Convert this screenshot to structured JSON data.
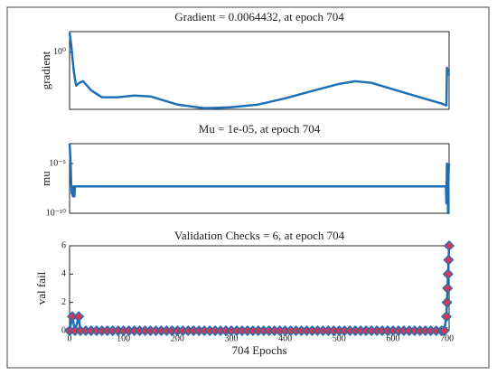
{
  "chart_data": [
    {
      "type": "line",
      "title": "Gradient = 0.0064432, at epoch 704",
      "ylabel": "gradient",
      "ylog": true,
      "xlim": [
        0,
        704
      ],
      "ylim": [
        3e-06,
        100
      ],
      "yticks": [
        {
          "value": 1,
          "label": "10⁰"
        }
      ],
      "color": "#1f6fb7",
      "x": [
        0,
        3,
        8,
        12,
        18,
        25,
        40,
        60,
        90,
        120,
        150,
        200,
        250,
        300,
        350,
        400,
        450,
        500,
        530,
        560,
        600,
        650,
        690,
        699,
        700,
        702,
        704
      ],
      "values": [
        80,
        5,
        0.012,
        0.00059,
        0.0011,
        0.0016,
        0.00021,
        4.4e-05,
        4.4e-05,
        6.5e-05,
        5.3e-05,
        8.7e-06,
        3.9e-06,
        4.8e-06,
        8.7e-06,
        3.5e-05,
        0.00018,
        0.00087,
        0.0016,
        0.0011,
        0.00026,
        4.4e-05,
        1.1e-05,
        7.2e-06,
        0.032,
        0.012,
        0.0064432
      ]
    },
    {
      "type": "line",
      "title": "Mu = 1e-05, at epoch 704",
      "ylabel": "mu",
      "ylog": true,
      "xlim": [
        0,
        704
      ],
      "ylim": [
        1e-10,
        0.001
      ],
      "yticks": [
        {
          "value": 1e-05,
          "label": "10⁻⁵"
        },
        {
          "value": 1e-10,
          "label": "10⁻¹⁰"
        }
      ],
      "color": "#1f6fb7",
      "x": [
        0,
        2,
        3,
        4,
        5,
        6,
        8,
        9,
        10,
        698,
        699,
        700,
        701,
        702,
        703,
        704
      ],
      "values": [
        0.001,
        1e-05,
        1e-07,
        1e-08,
        5e-08,
        5e-09,
        5e-08,
        5e-09,
        5e-08,
        5e-08,
        1e-09,
        1e-05,
        1e-07,
        1e-10,
        1e-06,
        1e-05
      ]
    },
    {
      "type": "line",
      "title": "Validation Checks = 6, at epoch 704",
      "ylabel": "val fail",
      "xlabel": "704 Epochs",
      "ylog": false,
      "xlim": [
        0,
        704
      ],
      "ylim": [
        0,
        6
      ],
      "yticks": [
        0,
        2,
        4,
        6
      ],
      "xticks": [
        0,
        100,
        200,
        300,
        400,
        500,
        600,
        700
      ],
      "color": "#1f6fb7",
      "marker": "diamond",
      "marker_fill": "#e0344a",
      "x": [
        0,
        5,
        10,
        17,
        20,
        30,
        40,
        50,
        60,
        70,
        80,
        90,
        100,
        110,
        120,
        130,
        140,
        150,
        160,
        170,
        180,
        190,
        200,
        210,
        220,
        230,
        240,
        250,
        260,
        270,
        280,
        290,
        300,
        310,
        320,
        330,
        340,
        350,
        360,
        370,
        380,
        390,
        400,
        410,
        420,
        430,
        440,
        450,
        460,
        470,
        480,
        490,
        500,
        510,
        520,
        530,
        540,
        550,
        560,
        570,
        580,
        590,
        600,
        610,
        620,
        630,
        640,
        650,
        660,
        670,
        680,
        690,
        695,
        699,
        700,
        701,
        702,
        703,
        704
      ],
      "values": [
        0,
        1,
        0,
        1,
        0,
        0,
        0,
        0,
        0,
        0,
        0,
        0,
        0,
        0,
        0,
        0,
        0,
        0,
        0,
        0,
        0,
        0,
        0,
        0,
        0,
        0,
        0,
        0,
        0,
        0,
        0,
        0,
        0,
        0,
        0,
        0,
        0,
        0,
        0,
        0,
        0,
        0,
        0,
        0,
        0,
        0,
        0,
        0,
        0,
        0,
        0,
        0,
        0,
        0,
        0,
        0,
        0,
        0,
        0,
        0,
        0,
        0,
        0,
        0,
        0,
        0,
        0,
        0,
        0,
        0,
        0,
        0,
        0,
        1,
        2,
        3,
        4,
        5,
        6
      ]
    }
  ]
}
